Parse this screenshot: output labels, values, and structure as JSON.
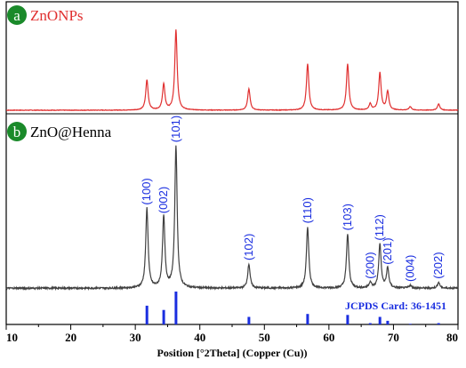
{
  "chart_data": {
    "type": "line",
    "xlabel": "Position [°2Theta] (Copper (Cu))",
    "xlim": [
      10,
      80
    ],
    "x_ticks": [
      "10",
      "20",
      "30",
      "40",
      "50",
      "60",
      "70",
      "80"
    ],
    "panels": [
      {
        "badge": "a",
        "name": "ZnONPs",
        "color": "#e03030",
        "baseline": 0.02,
        "peaks": [
          {
            "x": 31.8,
            "h": 0.34
          },
          {
            "x": 34.4,
            "h": 0.29
          },
          {
            "x": 36.3,
            "h": 0.9
          },
          {
            "x": 47.6,
            "h": 0.24
          },
          {
            "x": 56.7,
            "h": 0.52
          },
          {
            "x": 62.9,
            "h": 0.52
          },
          {
            "x": 66.4,
            "h": 0.07
          },
          {
            "x": 67.9,
            "h": 0.42
          },
          {
            "x": 69.1,
            "h": 0.21
          },
          {
            "x": 72.6,
            "h": 0.04
          },
          {
            "x": 77.0,
            "h": 0.07
          }
        ]
      },
      {
        "badge": "b",
        "name": "ZnO@Henna",
        "color": "#404040",
        "baseline": 0.03,
        "peaks": [
          {
            "x": 31.8,
            "h": 0.56,
            "label": "(100)"
          },
          {
            "x": 34.4,
            "h": 0.5,
            "label": "(002)"
          },
          {
            "x": 36.3,
            "h": 1.0,
            "label": "(101)"
          },
          {
            "x": 47.6,
            "h": 0.17,
            "label": "(102)"
          },
          {
            "x": 56.7,
            "h": 0.43,
            "label": "(110)"
          },
          {
            "x": 62.9,
            "h": 0.38,
            "label": "(103)"
          },
          {
            "x": 66.4,
            "h": 0.04,
            "label": "(200)"
          },
          {
            "x": 67.9,
            "h": 0.31,
            "label": "(112)"
          },
          {
            "x": 69.1,
            "h": 0.14,
            "label": "(201)"
          },
          {
            "x": 72.6,
            "h": 0.02,
            "label": "(004)"
          },
          {
            "x": 77.0,
            "h": 0.04,
            "label": "(202)"
          }
        ]
      }
    ],
    "reference": {
      "label": "JCPDS Card: 36-1451",
      "color": "#1a2ee0",
      "lines": [
        {
          "x": 31.8,
          "h": 0.57
        },
        {
          "x": 34.4,
          "h": 0.44
        },
        {
          "x": 36.3,
          "h": 1.0
        },
        {
          "x": 47.6,
          "h": 0.23
        },
        {
          "x": 56.7,
          "h": 0.32
        },
        {
          "x": 62.9,
          "h": 0.29
        },
        {
          "x": 66.4,
          "h": 0.04
        },
        {
          "x": 67.9,
          "h": 0.23
        },
        {
          "x": 69.1,
          "h": 0.11
        },
        {
          "x": 72.6,
          "h": 0.02
        },
        {
          "x": 77.0,
          "h": 0.04
        }
      ]
    }
  },
  "colors": {
    "badge_bg": "#1a8a2a",
    "badge_text": "#ffffff",
    "hkl_label": "#1a2ee0",
    "axis": "#000000"
  }
}
